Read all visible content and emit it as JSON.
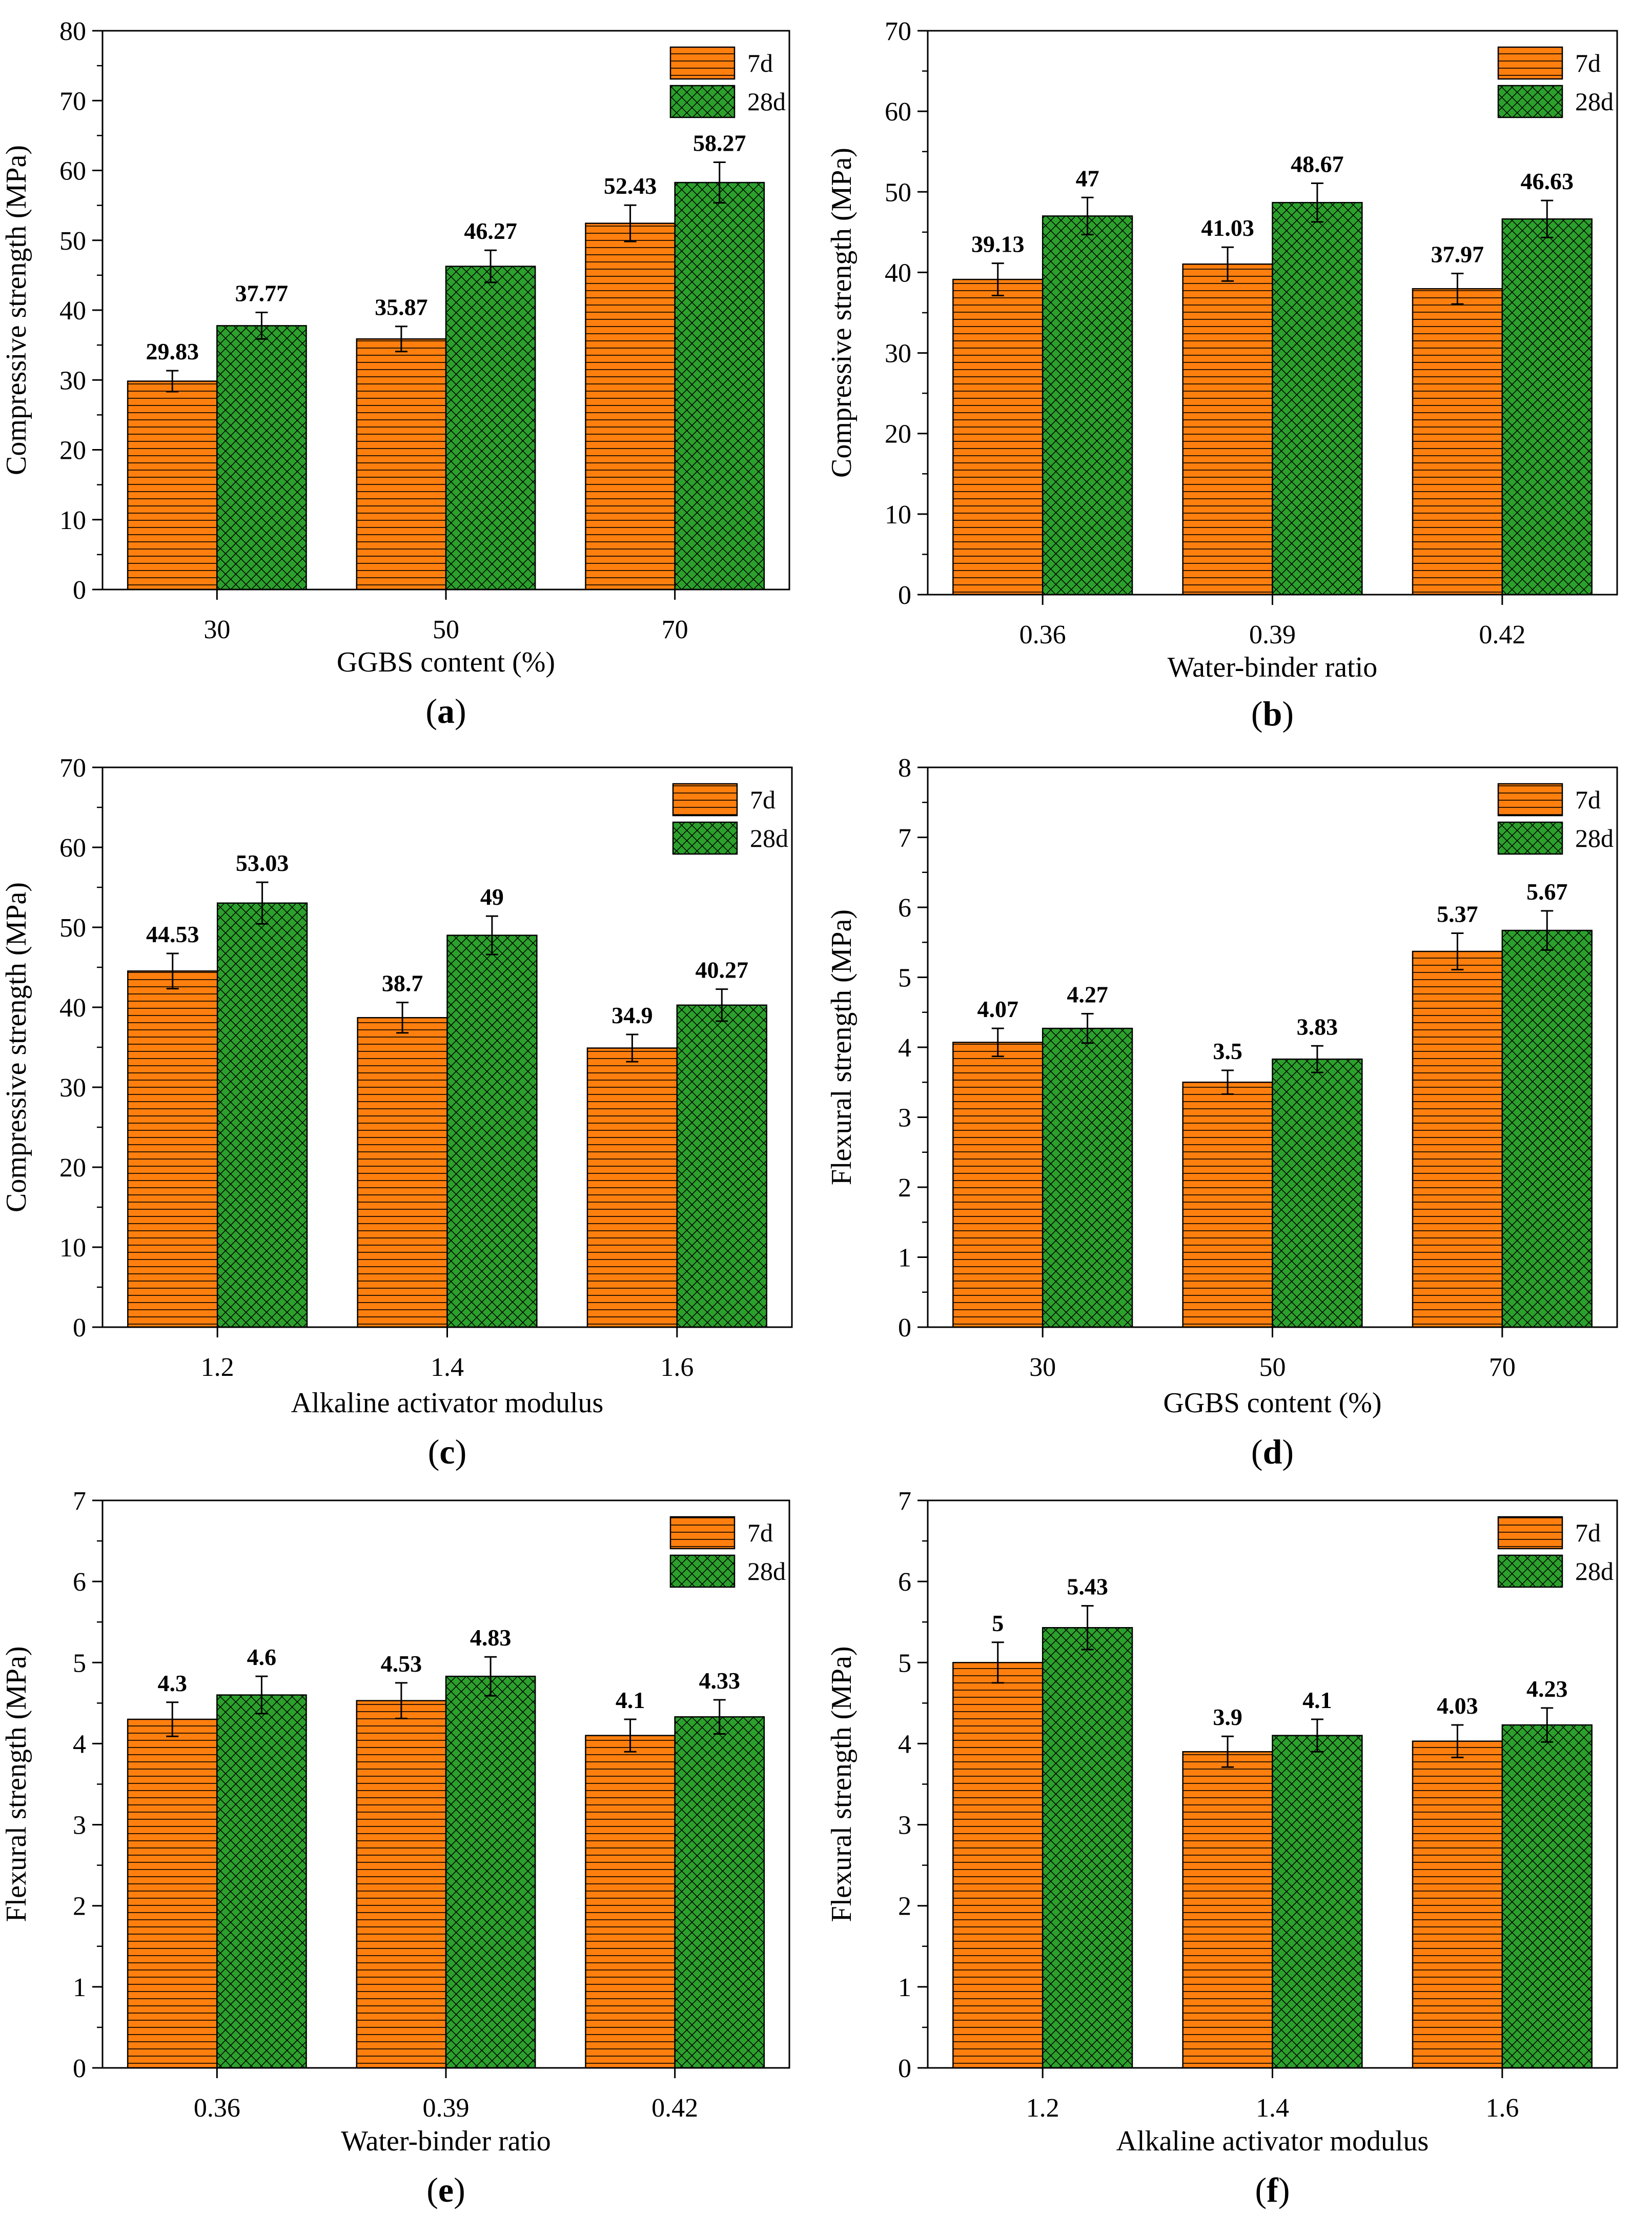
{
  "figure": {
    "legend_entries": [
      "7d",
      "28d"
    ],
    "series_colors": {
      "7d": "#ff7f0e",
      "28d": "#2ca02c"
    }
  },
  "chart_data": [
    {
      "type": "bar",
      "caption": "a",
      "categories": [
        "30",
        "50",
        "70"
      ],
      "series": [
        {
          "name": "7d",
          "values": [
            29.83,
            35.87,
            52.43
          ],
          "labels": [
            "29.83",
            "35.87",
            "52.43"
          ],
          "errors": [
            1.5,
            1.8,
            2.6
          ]
        },
        {
          "name": "28d",
          "values": [
            37.77,
            46.27,
            58.27
          ],
          "labels": [
            "37.77",
            "46.27",
            "58.27"
          ],
          "errors": [
            1.9,
            2.3,
            2.9
          ]
        }
      ],
      "xlabel": "GGBS content (%)",
      "ylabel": "Compressive strength (MPa)",
      "ylim": [
        0,
        80
      ],
      "yticks": [
        0,
        10,
        20,
        30,
        40,
        50,
        60,
        70,
        80
      ],
      "ytick_labels": [
        "0",
        "10",
        "20",
        "30",
        "40",
        "50",
        "60",
        "70",
        "80"
      ],
      "legend_position": "top-right"
    },
    {
      "type": "bar",
      "caption": "b",
      "categories": [
        "0.36",
        "0.39",
        "0.42"
      ],
      "series": [
        {
          "name": "7d",
          "values": [
            39.13,
            41.03,
            37.97
          ],
          "labels": [
            "39.13",
            "41.03",
            "37.97"
          ],
          "errors": [
            2.0,
            2.1,
            1.9
          ]
        },
        {
          "name": "28d",
          "values": [
            47,
            48.67,
            46.63
          ],
          "labels": [
            "47",
            "48.67",
            "46.63"
          ],
          "errors": [
            2.3,
            2.4,
            2.3
          ]
        }
      ],
      "xlabel": "Water-binder ratio",
      "ylabel": "Compressive strength (MPa)",
      "ylim": [
        0,
        70
      ],
      "yticks": [
        0,
        10,
        20,
        30,
        40,
        50,
        60,
        70
      ],
      "ytick_labels": [
        "0",
        "10",
        "20",
        "30",
        "40",
        "50",
        "60",
        "70"
      ],
      "legend_position": "top-right"
    },
    {
      "type": "bar",
      "caption": "c",
      "categories": [
        "1.2",
        "1.4",
        "1.6"
      ],
      "series": [
        {
          "name": "7d",
          "values": [
            44.53,
            38.7,
            34.9
          ],
          "labels": [
            "44.53",
            "38.7",
            "34.9"
          ],
          "errors": [
            2.2,
            1.9,
            1.7
          ]
        },
        {
          "name": "28d",
          "values": [
            53.03,
            49,
            40.27
          ],
          "labels": [
            "53.03",
            "49",
            "40.27"
          ],
          "errors": [
            2.6,
            2.4,
            2.0
          ]
        }
      ],
      "xlabel": "Alkaline activator modulus",
      "ylabel": "Compressive strength (MPa)",
      "ylim": [
        0,
        70
      ],
      "yticks": [
        0,
        10,
        20,
        30,
        40,
        50,
        60,
        70
      ],
      "ytick_labels": [
        "0",
        "10",
        "20",
        "30",
        "40",
        "50",
        "60",
        "70"
      ],
      "legend_position": "top-right"
    },
    {
      "type": "bar",
      "caption": "d",
      "categories": [
        "30",
        "50",
        "70"
      ],
      "series": [
        {
          "name": "7d",
          "values": [
            4.07,
            3.5,
            5.37
          ],
          "labels": [
            "4.07",
            "3.5",
            "5.37"
          ],
          "errors": [
            0.2,
            0.17,
            0.26
          ]
        },
        {
          "name": "28d",
          "values": [
            4.27,
            3.83,
            5.67
          ],
          "labels": [
            "4.27",
            "3.83",
            "5.67"
          ],
          "errors": [
            0.21,
            0.19,
            0.28
          ]
        }
      ],
      "xlabel": "GGBS content (%)",
      "ylabel": "Flexural strength (MPa)",
      "ylim": [
        0,
        8
      ],
      "yticks": [
        0,
        1,
        2,
        3,
        4,
        5,
        6,
        7,
        8
      ],
      "ytick_labels": [
        "0",
        "1",
        "2",
        "3",
        "4",
        "5",
        "6",
        "7",
        "8"
      ],
      "legend_position": "top-right"
    },
    {
      "type": "bar",
      "caption": "e",
      "categories": [
        "0.36",
        "0.39",
        "0.42"
      ],
      "series": [
        {
          "name": "7d",
          "values": [
            4.3,
            4.53,
            4.1
          ],
          "labels": [
            "4.3",
            "4.53",
            "4.1"
          ],
          "errors": [
            0.21,
            0.22,
            0.2
          ]
        },
        {
          "name": "28d",
          "values": [
            4.6,
            4.83,
            4.33
          ],
          "labels": [
            "4.6",
            "4.83",
            "4.33"
          ],
          "errors": [
            0.23,
            0.24,
            0.21
          ]
        }
      ],
      "xlabel": "Water-binder ratio",
      "ylabel": "Flexural strength (MPa)",
      "ylim": [
        0,
        7
      ],
      "yticks": [
        0,
        1,
        2,
        3,
        4,
        5,
        6,
        7
      ],
      "ytick_labels": [
        "0",
        "1",
        "2",
        "3",
        "4",
        "5",
        "6",
        "7"
      ],
      "legend_position": "top-right"
    },
    {
      "type": "bar",
      "caption": "f",
      "categories": [
        "1.2",
        "1.4",
        "1.6"
      ],
      "series": [
        {
          "name": "7d",
          "values": [
            5,
            3.9,
            4.03
          ],
          "labels": [
            "5",
            "3.9",
            "4.03"
          ],
          "errors": [
            0.25,
            0.19,
            0.2
          ]
        },
        {
          "name": "28d",
          "values": [
            5.43,
            4.1,
            4.23
          ],
          "labels": [
            "5.43",
            "4.1",
            "4.23"
          ],
          "errors": [
            0.27,
            0.2,
            0.21
          ]
        }
      ],
      "xlabel": "Alkaline activator modulus",
      "ylabel": "Flexural strength (MPa)",
      "ylim": [
        0,
        7
      ],
      "yticks": [
        0,
        1,
        2,
        3,
        4,
        5,
        6,
        7
      ],
      "ytick_labels": [
        "0",
        "1",
        "2",
        "3",
        "4",
        "5",
        "6",
        "7"
      ],
      "legend_position": "top-right"
    }
  ]
}
